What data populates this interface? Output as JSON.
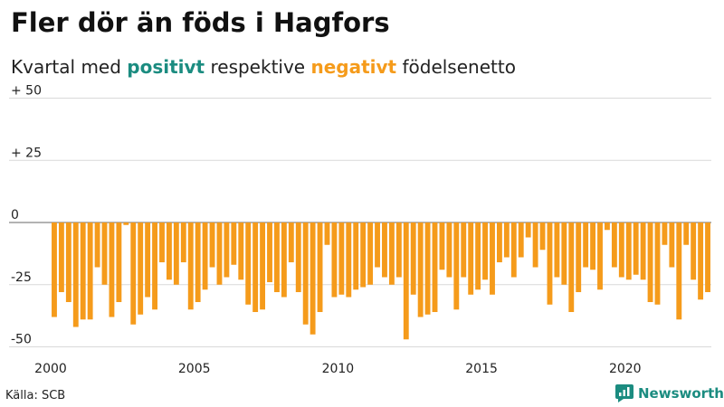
{
  "header": {
    "title": "Fler dör än föds i Hagfors",
    "subtitle_pre": "Kvartal med ",
    "subtitle_pos": "positivt",
    "subtitle_mid": " respektive ",
    "subtitle_neg": "negativt",
    "subtitle_post": " födelsenetto"
  },
  "footer": {
    "source": "Källa: SCB",
    "brand": "Newsworthy"
  },
  "colors": {
    "positive": "#1b8c80",
    "negative": "#f59b1b",
    "grid": "#d9d9d9",
    "zero": "#9a9a9a"
  },
  "chart_data": {
    "type": "bar",
    "x_start": 2000,
    "x_step": 0.25,
    "x_ticks": [
      2000,
      2005,
      2010,
      2015,
      2020
    ],
    "x_tick_labels": [
      "2000",
      "2005",
      "2010",
      "2015",
      "2020"
    ],
    "y_ticks": [
      50,
      25,
      0,
      -25,
      -50
    ],
    "y_tick_labels": [
      "+ 50",
      "+ 25",
      "0",
      "-25",
      "-50"
    ],
    "ylim": [
      -50,
      50
    ],
    "grid": true,
    "values": [
      -38,
      -28,
      -32,
      -42,
      -39,
      -39,
      -18,
      -25,
      -38,
      -32,
      -1,
      -41,
      -37,
      -30,
      -35,
      -16,
      -23,
      -25,
      -16,
      -35,
      -32,
      -27,
      -18,
      -25,
      -22,
      -17,
      -23,
      -33,
      -36,
      -35,
      -24,
      -28,
      -30,
      -16,
      -28,
      -41,
      -45,
      -36,
      -9,
      -30,
      -29,
      -30,
      -27,
      -26,
      -25,
      -18,
      -22,
      -25,
      -22,
      -47,
      -29,
      -38,
      -37,
      -36,
      -19,
      -22,
      -35,
      -22,
      -29,
      -27,
      -23,
      -29,
      -16,
      -14,
      -22,
      -14,
      -6,
      -18,
      -11,
      -33,
      -22,
      -25,
      -36,
      -28,
      -18,
      -19,
      -27,
      -3,
      -18,
      -22,
      -23,
      -21,
      -23,
      -32,
      -33,
      -9,
      -18,
      -39,
      -9,
      -23,
      -31,
      -28
    ]
  }
}
